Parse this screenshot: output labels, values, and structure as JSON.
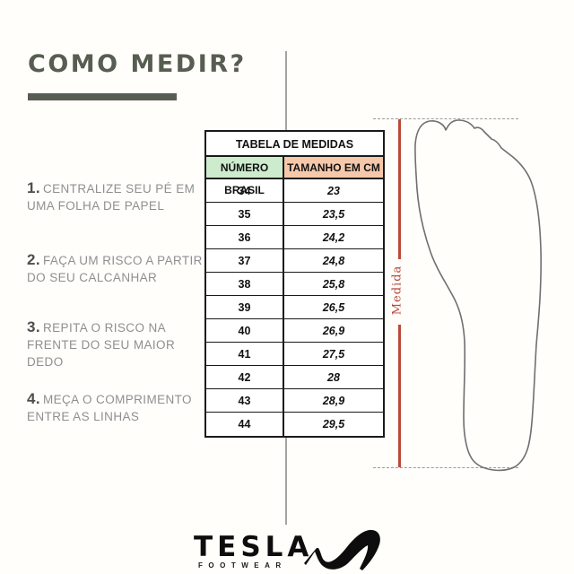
{
  "title": {
    "text": "COMO MEDIR?"
  },
  "steps": [
    {
      "num": "1.",
      "text": "CENTRALIZE SEU PÉ EM UMA FOLHA DE PAPEL"
    },
    {
      "num": "2.",
      "text": "FAÇA UM RISCO A PARTIR DO SEU CALCANHAR"
    },
    {
      "num": "3.",
      "text": "REPITA O RISCO NA FRENTE DO SEU MAIOR DEDO"
    },
    {
      "num": "4.",
      "text": "MEÇA O COMPRIMENTO ENTRE AS LINHAS"
    }
  ],
  "table": {
    "title": "TABELA DE MEDIDAS",
    "columns": [
      "NÚMERO BRASIL",
      "TAMANHO EM CM"
    ],
    "rows": [
      [
        "34",
        "23"
      ],
      [
        "35",
        "23,5"
      ],
      [
        "36",
        "24,2"
      ],
      [
        "37",
        "24,8"
      ],
      [
        "38",
        "25,8"
      ],
      [
        "39",
        "26,5"
      ],
      [
        "40",
        "26,9"
      ],
      [
        "41",
        "27,5"
      ],
      [
        "42",
        "28"
      ],
      [
        "43",
        "28,9"
      ],
      [
        "44",
        "29,5"
      ]
    ]
  },
  "measure": {
    "label": "Medida"
  },
  "footer": {
    "brand": "TESLA",
    "sub": "FOOTWEAR"
  },
  "colors": {
    "title_olive": "#585d51",
    "measure_red": "#b84a3c",
    "header_green": "#cdeccd",
    "header_salmon": "#f6c8ab",
    "guide_gray": "#a3a3a0",
    "foot_outline": "#6f6f6f",
    "table_border": "#1a1a1a"
  }
}
